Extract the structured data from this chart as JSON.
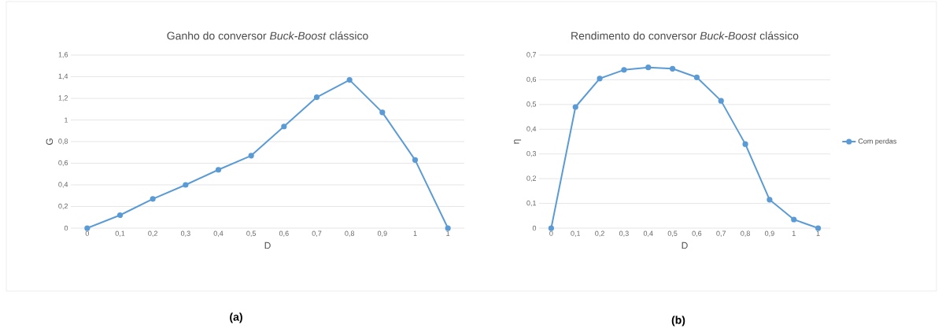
{
  "chart_data": [
    {
      "type": "line",
      "title": "Ganho do conversor *Buck-Boost* clássico",
      "xlabel": "D",
      "ylabel": "G",
      "categories": [
        "0",
        "0,1",
        "0,2",
        "0,3",
        "0,4",
        "0,5",
        "0,6",
        "0,7",
        "0,8",
        "0,9",
        "1",
        "1"
      ],
      "series": [
        {
          "color": "#5b9bd5",
          "values": [
            0,
            0.12,
            0.27,
            0.4,
            0.54,
            0.67,
            0.94,
            1.21,
            1.37,
            1.07,
            0.63,
            0
          ]
        }
      ],
      "ylim": [
        0,
        1.6
      ],
      "yticks": [
        0,
        {
          "value": 0.2,
          "label": "0,2"
        },
        {
          "value": 0.4,
          "label": "0,4"
        },
        {
          "value": 0.6,
          "label": "0,6"
        },
        {
          "value": 0.8,
          "label": "0,8"
        },
        1,
        {
          "value": 1.2,
          "label": "1,2"
        },
        {
          "value": 1.4,
          "label": "1,4"
        },
        {
          "value": 1.6,
          "label": "1,6"
        }
      ],
      "grid": "y",
      "marker": "circle",
      "line_style": "solid",
      "annotations": [
        "(a)"
      ]
    },
    {
      "type": "line",
      "title": "Rendimento do conversor *Buck-Boost* clássico",
      "xlabel": "D",
      "ylabel": "η",
      "categories": [
        "0",
        "0,1",
        "0,2",
        "0,3",
        "0,4",
        "0,5",
        "0,6",
        "0,7",
        "0,8",
        "0,9",
        "1",
        "1"
      ],
      "series": [
        {
          "name": "Com perdas",
          "color": "#5b9bd5",
          "values": [
            0,
            0.49,
            0.605,
            0.64,
            0.65,
            0.645,
            0.61,
            0.515,
            0.34,
            0.115,
            0.035,
            0
          ]
        }
      ],
      "ylim": [
        0,
        0.7
      ],
      "yticks": [
        0,
        {
          "value": 0.1,
          "label": "0,1"
        },
        {
          "value": 0.2,
          "label": "0,2"
        },
        {
          "value": 0.3,
          "label": "0,3"
        },
        {
          "value": 0.4,
          "label": "0,4"
        },
        {
          "value": 0.5,
          "label": "0,5"
        },
        {
          "value": 0.6,
          "label": "0,6"
        },
        {
          "value": 0.7,
          "label": "0,7"
        }
      ],
      "grid": "y",
      "marker": "circle",
      "line_style": "solid",
      "legend": "right",
      "annotations": [
        "(b)"
      ]
    }
  ]
}
